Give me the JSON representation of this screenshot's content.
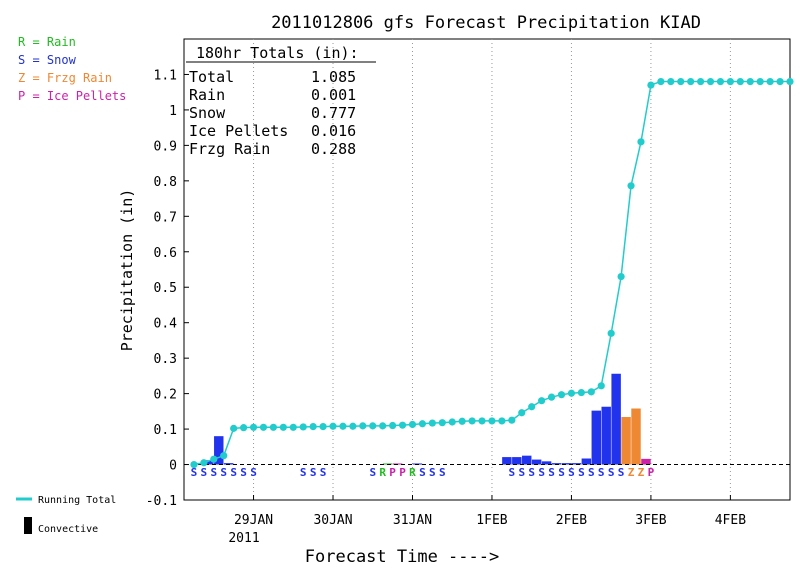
{
  "chart_data": {
    "type": "bar",
    "title": "2011012806 gfs Forecast Precipitation KIAD",
    "xlabel": "Forecast Time ---->",
    "ylabel": "Precipitation (in)",
    "ylim": [
      -0.1,
      1.2
    ],
    "yticks": [
      "-0.1",
      "0",
      "0.1",
      "0.2",
      "0.3",
      "0.4",
      "0.5",
      "0.6",
      "0.7",
      "0.8",
      "0.9",
      "1",
      "1.1"
    ],
    "ytick_values": [
      -0.1,
      0,
      0.1,
      0.2,
      0.3,
      0.4,
      0.5,
      0.6,
      0.7,
      0.8,
      0.9,
      1,
      1.1
    ],
    "xlim_hours": [
      -3,
      180
    ],
    "x_ticks": [
      {
        "label": "29JAN",
        "hour": 18
      },
      {
        "label": "30JAN",
        "hour": 42
      },
      {
        "label": "31JAN",
        "hour": 66
      },
      {
        "label": "1FEB",
        "hour": 90
      },
      {
        "label": "2FEB",
        "hour": 114
      },
      {
        "label": "3FEB",
        "hour": 138
      },
      {
        "label": "4FEB",
        "hour": 162
      }
    ],
    "year_label": "2011",
    "grid": "vertical-dotted",
    "precip_type_legend": [
      {
        "text": "R = Rain",
        "color": "#22bb22"
      },
      {
        "text": "S = Snow",
        "color": "#2233cc"
      },
      {
        "text": "Z = Frzg Rain",
        "color": "#ee8833"
      },
      {
        "text": "P = Ice Pellets",
        "color": "#cc22aa"
      }
    ],
    "series_legend": [
      {
        "text": "Running Total",
        "color": "#22cccc"
      },
      {
        "text": "Convective",
        "color": "#000000"
      }
    ],
    "totals": {
      "header": "180hr Totals (in):",
      "rows": [
        {
          "label": "Total",
          "value": "1.085"
        },
        {
          "label": "Rain",
          "value": "0.001"
        },
        {
          "label": "Snow",
          "value": "0.777"
        },
        {
          "label": "Ice Pellets",
          "value": "0.016"
        },
        {
          "label": "Frzg Rain",
          "value": "0.288"
        }
      ]
    },
    "colors": {
      "snow": "#2233ee",
      "frzg_rain": "#ee8833",
      "ice_pellets": "#cc22aa",
      "rain": "#22bb22",
      "running_total": "#22cccc"
    },
    "bars": [
      {
        "hour": 3,
        "value": 0.004,
        "type": "snow"
      },
      {
        "hour": 6,
        "value": 0.012,
        "type": "snow"
      },
      {
        "hour": 9,
        "value": 0.08,
        "type": "snow"
      },
      {
        "hour": 12,
        "value": 0.004,
        "type": "snow"
      },
      {
        "hour": 60,
        "value": 0.003,
        "type": "rain"
      },
      {
        "hour": 63,
        "value": 0.003,
        "type": "ice_pellets"
      },
      {
        "hour": 69,
        "value": 0.003,
        "type": "snow"
      },
      {
        "hour": 96,
        "value": 0.021,
        "type": "snow"
      },
      {
        "hour": 99,
        "value": 0.021,
        "type": "snow"
      },
      {
        "hour": 102,
        "value": 0.025,
        "type": "snow"
      },
      {
        "hour": 105,
        "value": 0.014,
        "type": "snow"
      },
      {
        "hour": 108,
        "value": 0.009,
        "type": "snow"
      },
      {
        "hour": 111,
        "value": 0.004,
        "type": "snow"
      },
      {
        "hour": 114,
        "value": 0.004,
        "type": "snow"
      },
      {
        "hour": 117,
        "value": 0.004,
        "type": "snow"
      },
      {
        "hour": 120,
        "value": 0.017,
        "type": "snow"
      },
      {
        "hour": 123,
        "value": 0.152,
        "type": "snow"
      },
      {
        "hour": 126,
        "value": 0.163,
        "type": "snow"
      },
      {
        "hour": 129,
        "value": 0.256,
        "type": "snow"
      },
      {
        "hour": 132,
        "value": 0.134,
        "type": "frzg_rain"
      },
      {
        "hour": 135,
        "value": 0.158,
        "type": "frzg_rain"
      },
      {
        "hour": 138,
        "value": 0.016,
        "type": "ice_pellets"
      }
    ],
    "running_total": {
      "x": [
        0,
        3,
        6,
        9,
        12,
        15,
        18,
        21,
        24,
        27,
        30,
        33,
        36,
        39,
        42,
        45,
        48,
        51,
        54,
        57,
        60,
        63,
        66,
        69,
        72,
        75,
        78,
        81,
        84,
        87,
        90,
        93,
        96,
        99,
        102,
        105,
        108,
        111,
        114,
        117,
        120,
        123,
        126,
        129,
        132,
        135,
        138,
        141,
        144,
        147,
        150,
        153,
        156,
        159,
        162,
        165,
        168,
        171,
        174,
        177,
        180
      ],
      "y": [
        0.0,
        0.005,
        0.015,
        0.025,
        0.102,
        0.104,
        0.105,
        0.105,
        0.105,
        0.105,
        0.105,
        0.106,
        0.107,
        0.107,
        0.108,
        0.108,
        0.108,
        0.109,
        0.109,
        0.109,
        0.11,
        0.111,
        0.113,
        0.115,
        0.117,
        0.118,
        0.12,
        0.122,
        0.123,
        0.123,
        0.123,
        0.123,
        0.125,
        0.146,
        0.163,
        0.18,
        0.19,
        0.197,
        0.201,
        0.203,
        0.205,
        0.222,
        0.37,
        0.53,
        0.786,
        0.91,
        1.07,
        1.08,
        1.08,
        1.08,
        1.08,
        1.08,
        1.08,
        1.08,
        1.08,
        1.08,
        1.08,
        1.08,
        1.08,
        1.08,
        1.08
      ]
    },
    "ptype_codes": [
      {
        "hour": 0,
        "code": "S",
        "type": "snow"
      },
      {
        "hour": 3,
        "code": "S",
        "type": "snow"
      },
      {
        "hour": 6,
        "code": "S",
        "type": "snow"
      },
      {
        "hour": 9,
        "code": "S",
        "type": "snow"
      },
      {
        "hour": 12,
        "code": "S",
        "type": "snow"
      },
      {
        "hour": 15,
        "code": "S",
        "type": "snow"
      },
      {
        "hour": 18,
        "code": "S",
        "type": "snow"
      },
      {
        "hour": 33,
        "code": "S",
        "type": "snow"
      },
      {
        "hour": 36,
        "code": "S",
        "type": "snow"
      },
      {
        "hour": 39,
        "code": "S",
        "type": "snow"
      },
      {
        "hour": 54,
        "code": "S",
        "type": "snow"
      },
      {
        "hour": 57,
        "code": "R",
        "type": "rain"
      },
      {
        "hour": 60,
        "code": "P",
        "type": "ice_pellets"
      },
      {
        "hour": 63,
        "code": "P",
        "type": "ice_pellets"
      },
      {
        "hour": 66,
        "code": "R",
        "type": "rain"
      },
      {
        "hour": 69,
        "code": "S",
        "type": "snow"
      },
      {
        "hour": 72,
        "code": "S",
        "type": "snow"
      },
      {
        "hour": 75,
        "code": "S",
        "type": "snow"
      },
      {
        "hour": 96,
        "code": "S",
        "type": "snow"
      },
      {
        "hour": 99,
        "code": "S",
        "type": "snow"
      },
      {
        "hour": 102,
        "code": "S",
        "type": "snow"
      },
      {
        "hour": 105,
        "code": "S",
        "type": "snow"
      },
      {
        "hour": 108,
        "code": "S",
        "type": "snow"
      },
      {
        "hour": 111,
        "code": "S",
        "type": "snow"
      },
      {
        "hour": 114,
        "code": "S",
        "type": "snow"
      },
      {
        "hour": 117,
        "code": "S",
        "type": "snow"
      },
      {
        "hour": 120,
        "code": "S",
        "type": "snow"
      },
      {
        "hour": 123,
        "code": "S",
        "type": "snow"
      },
      {
        "hour": 126,
        "code": "S",
        "type": "snow"
      },
      {
        "hour": 129,
        "code": "S",
        "type": "snow"
      },
      {
        "hour": 132,
        "code": "Z",
        "type": "frzg_rain"
      },
      {
        "hour": 135,
        "code": "Z",
        "type": "frzg_rain"
      },
      {
        "hour": 138,
        "code": "P",
        "type": "ice_pellets"
      }
    ]
  }
}
